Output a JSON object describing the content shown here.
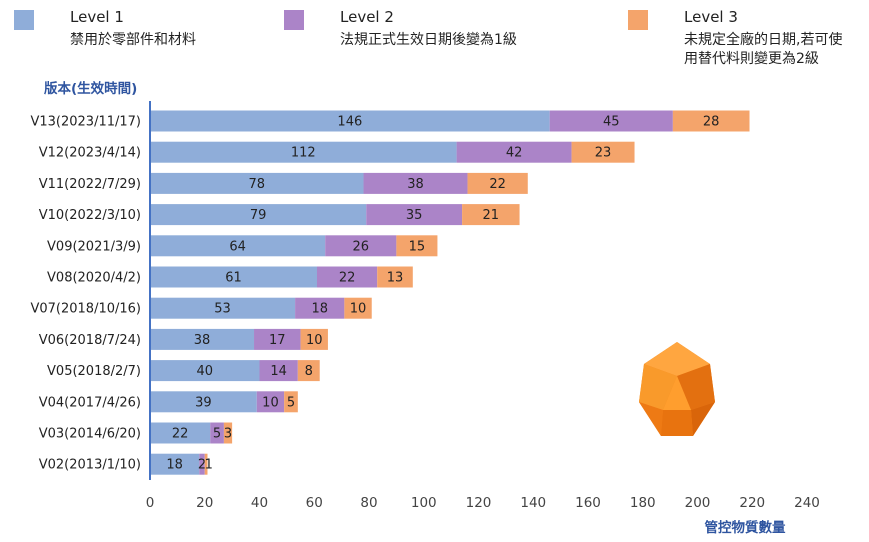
{
  "chart_data": {
    "type": "bar",
    "orientation": "horizontal",
    "stacked": true,
    "categories": [
      "V13(2023/11/17)",
      "V12(2023/4/14)",
      "V11(2022/7/29)",
      "V10(2022/3/10)",
      "V09(2021/3/9)",
      "V08(2020/4/2)",
      "V07(2018/10/16)",
      "V06(2018/7/24)",
      "V05(2018/2/7)",
      "V04(2017/4/26)",
      "V03(2014/6/20)",
      "V02(2013/1/10)"
    ],
    "series": [
      {
        "name": "Level 1",
        "description": "禁用於零部件和材料",
        "color": "#8fadd9",
        "values": [
          146,
          112,
          78,
          79,
          64,
          61,
          53,
          38,
          40,
          39,
          22,
          18
        ]
      },
      {
        "name": "Level 2",
        "description": "法規正式生效日期後變為1級",
        "color": "#ab84c8",
        "values": [
          45,
          42,
          38,
          35,
          26,
          22,
          18,
          17,
          14,
          10,
          5,
          2
        ]
      },
      {
        "name": "Level 3",
        "description": "未規定全廠的日期,若可使\n用替代料則變更為2級",
        "color": "#f4a46b",
        "values": [
          28,
          23,
          22,
          21,
          15,
          13,
          10,
          10,
          8,
          5,
          3,
          1
        ]
      }
    ],
    "xlim": [
      0,
      240
    ],
    "xticks": [
      0,
      20,
      40,
      60,
      80,
      100,
      120,
      140,
      160,
      180,
      200,
      220,
      240
    ],
    "xlabel": "管控物質數量",
    "ylabel": "版本(生效時間)",
    "legend_position": "top",
    "grid": false
  },
  "decoration": {
    "logo_icon": "orange-gem-icon",
    "logo_color": "#f5861f"
  }
}
